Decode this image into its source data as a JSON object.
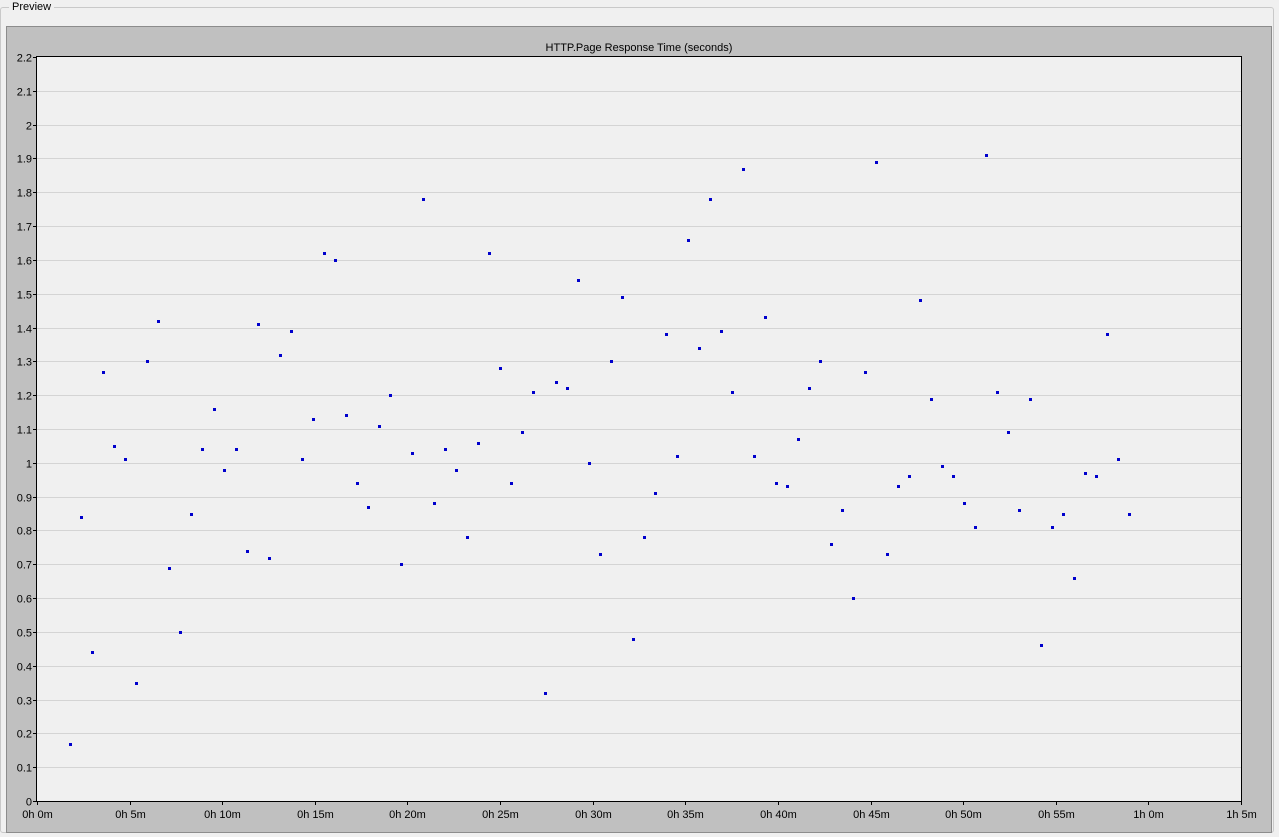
{
  "window": {
    "group_label": "Preview"
  },
  "colors": {
    "panel": "#c0c0c0",
    "plot_bg": "#f0f0f0",
    "grid": "#d4d4d4",
    "point": "#0000cc"
  },
  "chart_data": {
    "type": "scatter",
    "title": "HTTP.Page Response Time (seconds)",
    "xlabel": "",
    "ylabel": "",
    "x_unit": "minutes",
    "xlim": [
      0,
      65
    ],
    "ylim": [
      0,
      2.2
    ],
    "grid": true,
    "legend": "none",
    "x_ticks": [
      {
        "value": 0,
        "label": "0h 0m"
      },
      {
        "value": 5,
        "label": "0h 5m"
      },
      {
        "value": 10,
        "label": "0h 10m"
      },
      {
        "value": 15,
        "label": "0h 15m"
      },
      {
        "value": 20,
        "label": "0h 20m"
      },
      {
        "value": 25,
        "label": "0h 25m"
      },
      {
        "value": 30,
        "label": "0h 30m"
      },
      {
        "value": 35,
        "label": "0h 35m"
      },
      {
        "value": 40,
        "label": "0h 40m"
      },
      {
        "value": 45,
        "label": "0h 45m"
      },
      {
        "value": 50,
        "label": "0h 50m"
      },
      {
        "value": 55,
        "label": "0h 55m"
      },
      {
        "value": 60,
        "label": "1h 0m"
      },
      {
        "value": 65,
        "label": "1h 5m"
      }
    ],
    "y_ticks": [
      {
        "value": 0,
        "label": "0"
      },
      {
        "value": 0.1,
        "label": "0.1"
      },
      {
        "value": 0.2,
        "label": "0.2"
      },
      {
        "value": 0.3,
        "label": "0.3"
      },
      {
        "value": 0.4,
        "label": "0.4"
      },
      {
        "value": 0.5,
        "label": "0.5"
      },
      {
        "value": 0.6,
        "label": "0.6"
      },
      {
        "value": 0.7,
        "label": "0.7"
      },
      {
        "value": 0.8,
        "label": "0.8"
      },
      {
        "value": 0.9,
        "label": "0.9"
      },
      {
        "value": 1,
        "label": "1"
      },
      {
        "value": 1.1,
        "label": "1.1"
      },
      {
        "value": 1.2,
        "label": "1.2"
      },
      {
        "value": 1.3,
        "label": "1.3"
      },
      {
        "value": 1.4,
        "label": "1.4"
      },
      {
        "value": 1.5,
        "label": "1.5"
      },
      {
        "value": 1.6,
        "label": "1.6"
      },
      {
        "value": 1.7,
        "label": "1.7"
      },
      {
        "value": 1.8,
        "label": "1.8"
      },
      {
        "value": 1.9,
        "label": "1.9"
      },
      {
        "value": 2,
        "label": "2"
      },
      {
        "value": 2.1,
        "label": "2.1"
      },
      {
        "value": 2.2,
        "label": "2.2"
      }
    ],
    "series": [
      {
        "points": [
          [
            1.79,
            0.17
          ],
          [
            2.38,
            0.84
          ],
          [
            2.98,
            0.44
          ],
          [
            3.57,
            1.27
          ],
          [
            4.17,
            1.05
          ],
          [
            4.76,
            1.01
          ],
          [
            5.36,
            0.35
          ],
          [
            5.95,
            1.3
          ],
          [
            6.55,
            1.42
          ],
          [
            7.15,
            0.69
          ],
          [
            7.74,
            0.5
          ],
          [
            8.34,
            0.85
          ],
          [
            8.93,
            1.04
          ],
          [
            9.53,
            1.16
          ],
          [
            10.12,
            0.98
          ],
          [
            10.72,
            1.04
          ],
          [
            11.32,
            0.74
          ],
          [
            11.91,
            1.41
          ],
          [
            12.51,
            0.72
          ],
          [
            13.1,
            1.32
          ],
          [
            13.7,
            1.39
          ],
          [
            14.29,
            1.01
          ],
          [
            14.89,
            1.13
          ],
          [
            15.49,
            1.62
          ],
          [
            16.08,
            1.6
          ],
          [
            16.68,
            1.14
          ],
          [
            17.27,
            0.94
          ],
          [
            17.87,
            0.87
          ],
          [
            18.46,
            1.11
          ],
          [
            19.06,
            1.2
          ],
          [
            19.66,
            0.7
          ],
          [
            20.25,
            1.03
          ],
          [
            20.85,
            1.78
          ],
          [
            21.44,
            0.88
          ],
          [
            22.04,
            1.04
          ],
          [
            22.63,
            0.98
          ],
          [
            23.23,
            0.78
          ],
          [
            23.83,
            1.06
          ],
          [
            24.42,
            1.62
          ],
          [
            25.02,
            1.28
          ],
          [
            25.61,
            0.94
          ],
          [
            26.21,
            1.09
          ],
          [
            26.8,
            1.21
          ],
          [
            27.4,
            0.32
          ],
          [
            28.0,
            1.24
          ],
          [
            28.59,
            1.22
          ],
          [
            29.19,
            1.54
          ],
          [
            29.78,
            1.0
          ],
          [
            30.38,
            0.73
          ],
          [
            30.97,
            1.3
          ],
          [
            31.57,
            1.49
          ],
          [
            32.17,
            0.48
          ],
          [
            32.76,
            0.78
          ],
          [
            33.36,
            0.91
          ],
          [
            33.95,
            1.38
          ],
          [
            34.55,
            1.02
          ],
          [
            35.14,
            1.66
          ],
          [
            35.74,
            1.34
          ],
          [
            36.34,
            1.78
          ],
          [
            36.93,
            1.39
          ],
          [
            37.53,
            1.21
          ],
          [
            38.12,
            1.87
          ],
          [
            38.72,
            1.02
          ],
          [
            39.31,
            1.43
          ],
          [
            39.91,
            0.94
          ],
          [
            40.51,
            0.93
          ],
          [
            41.1,
            1.07
          ],
          [
            41.7,
            1.22
          ],
          [
            42.29,
            1.3
          ],
          [
            42.89,
            0.76
          ],
          [
            43.48,
            0.86
          ],
          [
            44.08,
            0.6
          ],
          [
            44.68,
            1.27
          ],
          [
            45.27,
            1.89
          ],
          [
            45.87,
            0.73
          ],
          [
            46.46,
            0.93
          ],
          [
            47.06,
            0.96
          ],
          [
            47.65,
            1.48
          ],
          [
            48.25,
            1.19
          ],
          [
            48.85,
            0.99
          ],
          [
            49.44,
            0.96
          ],
          [
            50.04,
            0.88
          ],
          [
            50.63,
            0.81
          ],
          [
            51.23,
            1.91
          ],
          [
            51.82,
            1.21
          ],
          [
            52.42,
            1.09
          ],
          [
            53.02,
            0.86
          ],
          [
            53.61,
            1.19
          ],
          [
            54.21,
            0.46
          ],
          [
            54.8,
            0.81
          ],
          [
            55.4,
            0.85
          ],
          [
            55.99,
            0.66
          ],
          [
            56.59,
            0.97
          ],
          [
            57.19,
            0.96
          ],
          [
            57.78,
            1.38
          ],
          [
            58.38,
            1.01
          ],
          [
            58.97,
            0.85
          ]
        ]
      }
    ]
  }
}
